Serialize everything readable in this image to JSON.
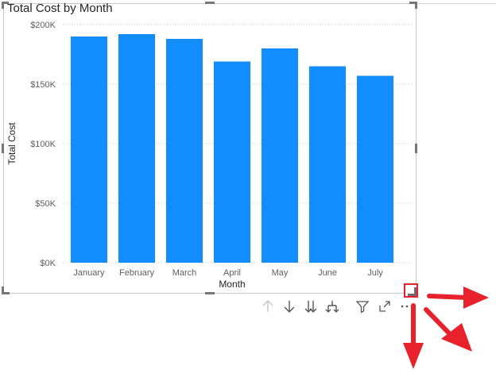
{
  "visual": {
    "title": "Total Cost by Month"
  },
  "toolbar": {
    "icons": [
      "drill-up-icon",
      "drill-down-icon",
      "expand-next-level-icon",
      "expand-hierarchy-icon",
      "filter-icon",
      "focus-mode-icon",
      "more-options-icon"
    ]
  },
  "colors": {
    "bar": "#118DFF",
    "annotation_arrow": "#E8222C"
  },
  "chart_data": {
    "type": "bar",
    "title": "Total Cost by Month",
    "xlabel": "Month",
    "ylabel": "Total Cost",
    "categories": [
      "January",
      "February",
      "March",
      "April",
      "May",
      "June",
      "July"
    ],
    "values": [
      190000,
      192000,
      188000,
      169000,
      180000,
      165000,
      157000
    ],
    "ylim": [
      0,
      200000
    ],
    "yticks": [
      0,
      50000,
      100000,
      150000,
      200000
    ],
    "ytick_labels": [
      "$0K",
      "$50K",
      "$100K",
      "$150K",
      "$200K"
    ],
    "grid": true,
    "legend": "none"
  }
}
